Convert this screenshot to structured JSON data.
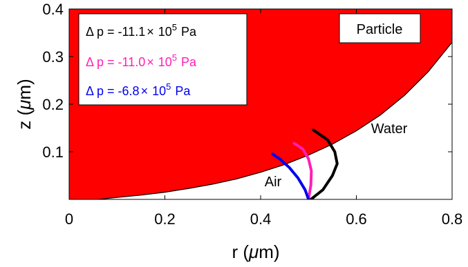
{
  "chart_data": {
    "type": "line",
    "title": "",
    "xlabel_main": "r (",
    "xlabel_mu": "μ",
    "xlabel_tail": "m)",
    "ylabel_main": "z (",
    "ylabel_mu": "μ",
    "ylabel_tail": "m)",
    "xlim": [
      0,
      0.8
    ],
    "ylim": [
      0,
      0.4
    ],
    "xticks": [
      0,
      0.2,
      0.4,
      0.6,
      0.8
    ],
    "xtick_labels": [
      "0",
      "0.2",
      "0.4",
      "0.6",
      "0.8"
    ],
    "yticks": [
      0.1,
      0.2,
      0.3,
      0.4
    ],
    "ytick_labels": [
      "0.1",
      "0.2",
      "0.3",
      "0.4"
    ],
    "grid": false,
    "legend_position": "top-left",
    "particle_color": "#ff0000",
    "particle_surface": {
      "r": [
        0.06,
        0.1,
        0.15,
        0.2,
        0.25,
        0.3,
        0.35,
        0.4,
        0.45,
        0.5,
        0.55,
        0.6,
        0.65,
        0.7,
        0.75,
        0.8
      ],
      "z": [
        0.0,
        0.004,
        0.009,
        0.015,
        0.023,
        0.032,
        0.043,
        0.057,
        0.073,
        0.093,
        0.116,
        0.144,
        0.177,
        0.218,
        0.268,
        0.33
      ]
    },
    "series": [
      {
        "legend_prefix": "Δ p = -11.1",
        "legend_times": "×",
        "legend_base": "10",
        "legend_exp": "5",
        "legend_unit": "Pa",
        "color": "#000000",
        "x": [
          0.505,
          0.53,
          0.55,
          0.56,
          0.555,
          0.54,
          0.51
        ],
        "y": [
          0.0,
          0.02,
          0.05,
          0.075,
          0.1,
          0.125,
          0.146
        ]
      },
      {
        "legend_prefix": "Δ p = -11.0",
        "legend_times": "×",
        "legend_base": "10",
        "legend_exp": "5",
        "legend_unit": "Pa",
        "color": "#ff1fb4",
        "x": [
          0.5,
          0.505,
          0.506,
          0.5,
          0.488,
          0.47
        ],
        "y": [
          0.0,
          0.03,
          0.06,
          0.085,
          0.106,
          0.118
        ]
      },
      {
        "legend_prefix": "Δ p = -6.8",
        "legend_times": "×",
        "legend_base": "10",
        "legend_exp": "5",
        "legend_unit": "Pa",
        "color": "#0000ee",
        "x": [
          0.5,
          0.493,
          0.478,
          0.46,
          0.44,
          0.425
        ],
        "y": [
          0.0,
          0.02,
          0.045,
          0.067,
          0.085,
          0.095
        ]
      }
    ],
    "annotations": {
      "particle": "Particle",
      "water": "Water",
      "air": "Air"
    }
  }
}
